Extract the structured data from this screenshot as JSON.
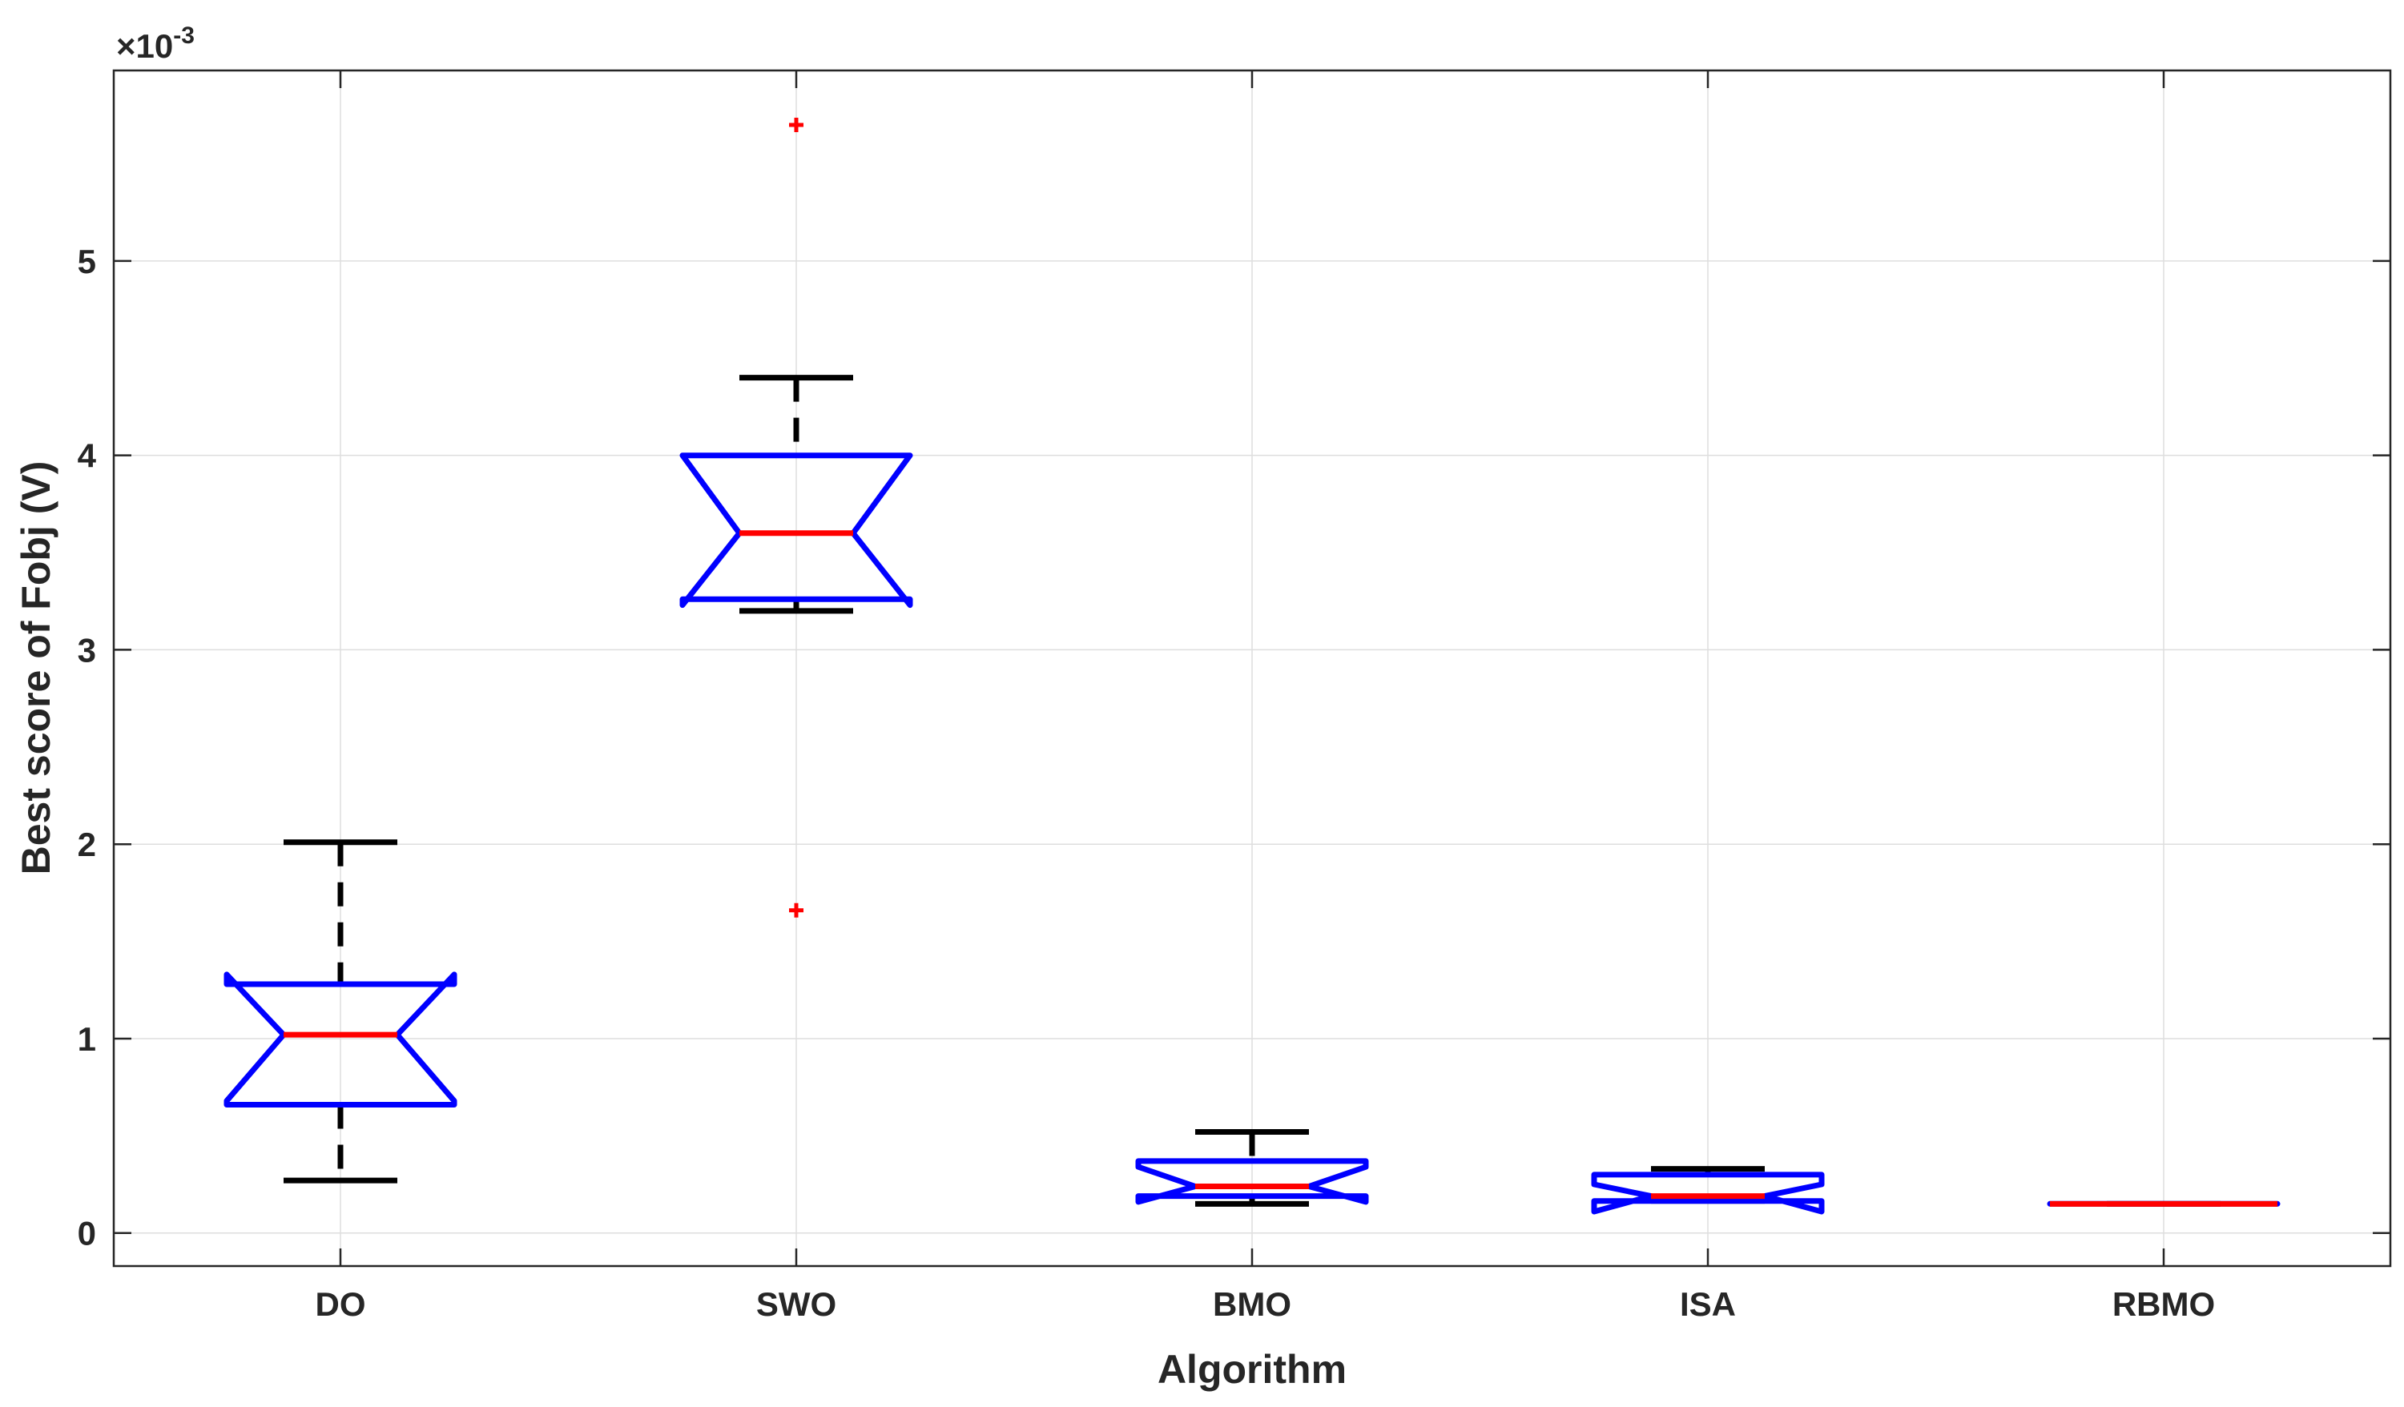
{
  "chart_data": {
    "type": "boxplot",
    "title": "",
    "xlabel": "Algorithm",
    "ylabel": "Best score of Fobj (V)",
    "exponent_label": "×10",
    "exponent_power": "-3",
    "ylim": [
      -0.00017,
      0.00598
    ],
    "yticks": [
      0,
      0.001,
      0.002,
      0.003,
      0.004,
      0.005
    ],
    "ytick_labels": [
      "0",
      "1",
      "2",
      "3",
      "4",
      "5"
    ],
    "grid": true,
    "notched": true,
    "colors": {
      "box": "#0000ff",
      "median": "#ff0000",
      "whisker": "#000000",
      "outlier": "#ff0000",
      "grid": "#dedede",
      "axis": "#262626"
    },
    "categories": [
      "DO",
      "SWO",
      "BMO",
      "ISA",
      "RBMO"
    ],
    "boxes": [
      {
        "name": "DO",
        "q1": 0.00066,
        "median": 0.00102,
        "q3": 0.00128,
        "notch_low": 0.00068,
        "notch_high": 0.00133,
        "whisker_low": 0.00027,
        "whisker_high": 0.00201,
        "outliers": []
      },
      {
        "name": "SWO",
        "q1": 0.00326,
        "median": 0.0036,
        "q3": 0.004,
        "notch_low": 0.00323,
        "notch_high": 0.004,
        "whisker_low": 0.0032,
        "whisker_high": 0.0044,
        "outliers": [
          0.0057,
          0.00166
        ]
      },
      {
        "name": "BMO",
        "q1": 0.00019,
        "median": 0.00024,
        "q3": 0.00037,
        "notch_low": 0.00016,
        "notch_high": 0.00034,
        "whisker_low": 0.00015,
        "whisker_high": 0.00052,
        "outliers": []
      },
      {
        "name": "ISA",
        "q1": 0.000165,
        "median": 0.00019,
        "q3": 0.0003,
        "notch_low": 0.00011,
        "notch_high": 0.00025,
        "whisker_low": 0.000165,
        "whisker_high": 0.00033,
        "outliers": []
      },
      {
        "name": "RBMO",
        "q1": 0.00015,
        "median": 0.00015,
        "q3": 0.00015,
        "notch_low": 0.00015,
        "notch_high": 0.00015,
        "whisker_low": 0.00015,
        "whisker_high": 0.00015,
        "outliers": []
      }
    ]
  }
}
